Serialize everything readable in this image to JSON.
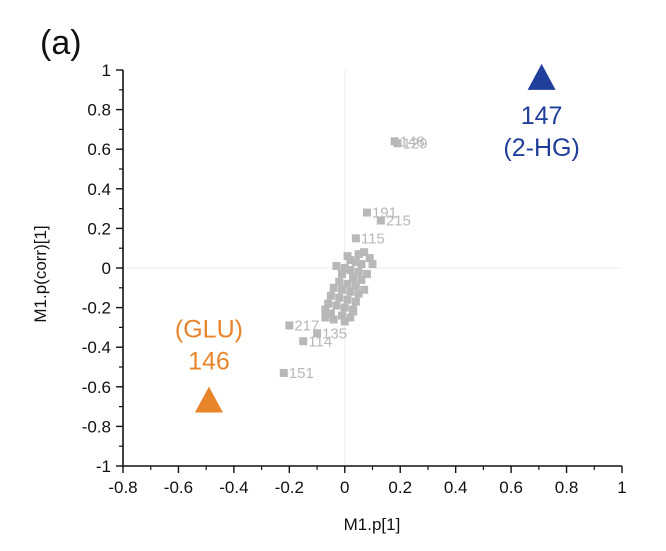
{
  "chart_data": {
    "type": "scatter",
    "panel_label": "(a)",
    "xlabel": "M1.p[1]",
    "ylabel": "M1.p(corr)[1]",
    "xlim": [
      -0.8,
      1
    ],
    "ylim": [
      -1,
      1
    ],
    "x_ticks": [
      "-0.8",
      "-0.6",
      "-0.4",
      "-0.2",
      "0",
      "0.2",
      "0.4",
      "0.6",
      "0.8",
      "1"
    ],
    "y_ticks": [
      "-1",
      "-0.8",
      "-0.6",
      "-0.4",
      "-0.2",
      "0",
      "0.2",
      "0.4",
      "0.6",
      "0.8",
      "1"
    ],
    "grid": false,
    "zero_lines": true,
    "colors": {
      "points": "#b8b8b8",
      "glu": "#e8842a",
      "hg2": "#1f3f9a",
      "zero_line": "#ececec",
      "axis": "#111111"
    },
    "labeled_points": [
      {
        "label": "148",
        "x": 0.18,
        "y": 0.64
      },
      {
        "label": "129",
        "x": 0.19,
        "y": 0.63
      },
      {
        "label": "191",
        "x": 0.08,
        "y": 0.28
      },
      {
        "label": "215",
        "x": 0.13,
        "y": 0.24
      },
      {
        "label": "115",
        "x": 0.04,
        "y": 0.15
      },
      {
        "label": "217",
        "x": -0.2,
        "y": -0.29
      },
      {
        "label": "135",
        "x": -0.1,
        "y": -0.33
      },
      {
        "label": "114",
        "x": -0.15,
        "y": -0.37
      },
      {
        "label": "151",
        "x": -0.22,
        "y": -0.53
      }
    ],
    "cluster_points": [
      {
        "x": 0.05,
        "y": 0.07
      },
      {
        "x": 0.07,
        "y": 0.08
      },
      {
        "x": 0.09,
        "y": 0.05
      },
      {
        "x": 0.04,
        "y": 0.03
      },
      {
        "x": 0.06,
        "y": 0.02
      },
      {
        "x": 0.02,
        "y": 0.04
      },
      {
        "x": 0.0,
        "y": 0.0
      },
      {
        "x": 0.02,
        "y": -0.01
      },
      {
        "x": 0.05,
        "y": -0.02
      },
      {
        "x": -0.01,
        "y": -0.03
      },
      {
        "x": 0.03,
        "y": -0.05
      },
      {
        "x": 0.06,
        "y": -0.06
      },
      {
        "x": -0.02,
        "y": -0.07
      },
      {
        "x": 0.01,
        "y": -0.08
      },
      {
        "x": 0.04,
        "y": -0.09
      },
      {
        "x": -0.04,
        "y": -0.1
      },
      {
        "x": -0.01,
        "y": -0.11
      },
      {
        "x": 0.02,
        "y": -0.12
      },
      {
        "x": 0.05,
        "y": -0.13
      },
      {
        "x": -0.05,
        "y": -0.14
      },
      {
        "x": -0.02,
        "y": -0.15
      },
      {
        "x": 0.01,
        "y": -0.16
      },
      {
        "x": 0.04,
        "y": -0.17
      },
      {
        "x": -0.06,
        "y": -0.18
      },
      {
        "x": -0.03,
        "y": -0.19
      },
      {
        "x": 0.0,
        "y": -0.2
      },
      {
        "x": 0.03,
        "y": -0.21
      },
      {
        "x": -0.07,
        "y": -0.21
      },
      {
        "x": -0.05,
        "y": -0.23
      },
      {
        "x": -0.01,
        "y": -0.24
      },
      {
        "x": 0.02,
        "y": -0.25
      },
      {
        "x": -0.07,
        "y": -0.25
      },
      {
        "x": -0.04,
        "y": -0.26
      },
      {
        "x": 0.0,
        "y": -0.27
      },
      {
        "x": 0.03,
        "y": -0.22
      },
      {
        "x": 0.07,
        "y": -0.11
      },
      {
        "x": 0.08,
        "y": -0.03
      },
      {
        "x": 0.1,
        "y": 0.02
      },
      {
        "x": -0.03,
        "y": 0.01
      },
      {
        "x": 0.01,
        "y": 0.06
      }
    ],
    "highlights": [
      {
        "id": "glu",
        "label_line1": "(GLU)",
        "label_line2": "146",
        "x": -0.49,
        "y": -0.67,
        "marker": "triangle"
      },
      {
        "id": "hg2",
        "label_line1": "147",
        "label_line2": "(2-HG)",
        "x": 0.71,
        "y": 0.96,
        "marker": "triangle"
      }
    ]
  }
}
